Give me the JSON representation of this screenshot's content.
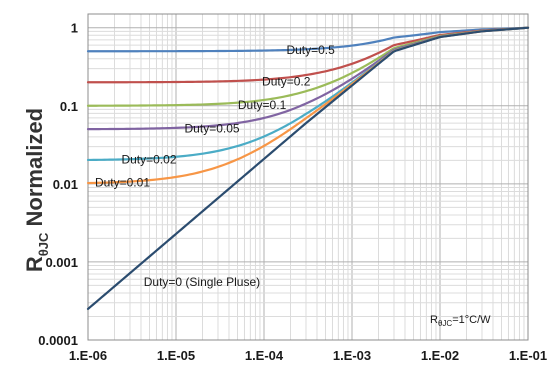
{
  "chart_data": {
    "type": "line",
    "x_scale": "log",
    "y_scale": "log",
    "xlim": [
      1e-06,
      0.1
    ],
    "ylim": [
      0.0001,
      1.5
    ],
    "grid": true,
    "ylabel": {
      "main": "R",
      "subscript": "θJC",
      "rest": " Normalized"
    },
    "x_ticks": [
      {
        "value": 1e-06,
        "label": "1.E-06"
      },
      {
        "value": 1e-05,
        "label": "1.E-05"
      },
      {
        "value": 0.0001,
        "label": "1.E-04"
      },
      {
        "value": 0.001,
        "label": "1.E-03"
      },
      {
        "value": 0.01,
        "label": "1.E-02"
      },
      {
        "value": 0.1,
        "label": "1.E-01"
      }
    ],
    "y_ticks": [
      {
        "value": 1,
        "label": "1"
      },
      {
        "value": 0.1,
        "label": "0.1"
      },
      {
        "value": 0.01,
        "label": "0.01"
      },
      {
        "value": 0.001,
        "label": "0.001"
      },
      {
        "value": 0.0001,
        "label": "0.0001"
      }
    ],
    "annotation": {
      "prefix": "R",
      "subscript": "θJC",
      "suffix": "=1°C/W"
    },
    "series": [
      {
        "name": "Duty=0.5",
        "duty": 0.5,
        "color": "#4f81bd",
        "label": {
          "text": "Duty=0.5",
          "x": 0.00018,
          "y": 0.52
        }
      },
      {
        "name": "Duty=0.2",
        "duty": 0.2,
        "color": "#c0504d",
        "label": {
          "text": "Duty=0.2",
          "x": 9.5e-05,
          "y": 0.205
        }
      },
      {
        "name": "Duty=0.1",
        "duty": 0.1,
        "color": "#9bbb59",
        "label": {
          "text": "Duty=0.1",
          "x": 5.05e-05,
          "y": 0.102
        }
      },
      {
        "name": "Duty=0.05",
        "duty": 0.05,
        "color": "#8064a2",
        "label": {
          "text": "Duty=0.05",
          "x": 1.25e-05,
          "y": 0.051
        }
      },
      {
        "name": "Duty=0.02",
        "duty": 0.02,
        "color": "#4bacc6",
        "label": {
          "text": "Duty=0.02",
          "x": 2.4e-06,
          "y": 0.0205
        }
      },
      {
        "name": "Duty=0.01",
        "duty": 0.01,
        "color": "#f79646",
        "label": {
          "text": "Duty=0.01",
          "x": 1.2e-06,
          "y": 0.0104
        }
      },
      {
        "name": "Duty=0 (Single Pluse)",
        "duty": 0,
        "color": "#2b4c6f",
        "label": {
          "text": "Duty=0 (Single Pluse)",
          "x": 4.3e-06,
          "y": 0.00055
        }
      }
    ],
    "single_pulse_points": [
      [
        1e-06,
        0.00025
      ],
      [
        0.0003,
        0.06
      ],
      [
        0.003,
        0.5
      ],
      [
        0.01,
        0.76
      ],
      [
        0.03,
        0.9
      ],
      [
        0.1,
        1.0
      ]
    ]
  }
}
